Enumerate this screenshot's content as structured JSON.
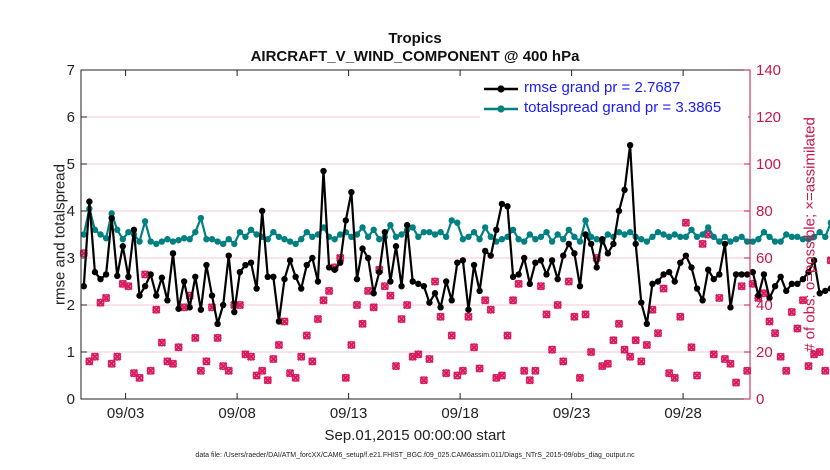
{
  "chart_data": {
    "type": "line",
    "title": "Tropics",
    "subtitle": "AIRCRAFT_V_WIND_COMPONENT @ 400 hPa",
    "xlabel": "Sep.01,2015 00:00:00 start",
    "ylabel_left": "rmse and totalspread",
    "ylabel_right": "# of obs: o=possible; ×=assimilated",
    "footnote": "data file: /Users/raeder/DAI/ATM_forcXX/CAM6_setup/f.e21.FHIST_BGC.f09_025.CAM6assim.011/Diags_NTrS_2015-09/obs_diag_output.nc",
    "x_ticks": [
      "09/03",
      "09/08",
      "09/13",
      "09/18",
      "09/23",
      "09/28"
    ],
    "x_tick_days": [
      3,
      8,
      13,
      18,
      23,
      28
    ],
    "xlim": [
      1,
      31
    ],
    "ylim_left": [
      0,
      7
    ],
    "yticks_left": [
      "0",
      "1",
      "2",
      "3",
      "4",
      "5",
      "6",
      "7"
    ],
    "ylim_right": [
      0,
      140
    ],
    "yticks_right": [
      "0",
      "20",
      "40",
      "60",
      "80",
      "100",
      "120",
      "140"
    ],
    "x_step_days": 0.25,
    "x_start_day": 1.125,
    "colors": {
      "rmse": "#000000",
      "totalspread": "#008080",
      "obs": "#d81b60",
      "right_axis": "#c8174a",
      "legend_text": "#1a1aff"
    },
    "series": [
      {
        "name": "rmse grand pr = 2.7687",
        "axis": "left",
        "values": [
          2.4,
          4.2,
          2.7,
          2.55,
          2.65,
          3.85,
          2.62,
          3.25,
          2.6,
          3.6,
          2.2,
          2.4,
          2.65,
          2.2,
          2.58,
          2.1,
          3.1,
          1.92,
          2.5,
          1.95,
          2.6,
          1.9,
          2.85,
          2.2,
          1.6,
          2.0,
          3.05,
          1.85,
          2.7,
          2.85,
          2.9,
          2.35,
          4.0,
          2.6,
          2.6,
          1.65,
          2.55,
          2.95,
          2.6,
          2.35,
          2.85,
          3.0,
          2.5,
          4.85,
          2.8,
          2.75,
          2.9,
          3.8,
          4.4,
          2.55,
          3.2,
          3.0,
          2.25,
          2.7,
          3.55,
          2.5,
          3.25,
          2.4,
          3.7,
          2.5,
          2.45,
          2.4,
          2.05,
          2.25,
          1.95,
          2.5,
          2.1,
          2.9,
          2.95,
          1.9,
          2.85,
          2.3,
          3.15,
          3.05,
          3.6,
          4.15,
          4.1,
          2.6,
          2.65,
          3.0,
          2.45,
          2.9,
          2.95,
          2.65,
          2.95,
          2.55,
          3.05,
          3.3,
          3.1,
          2.4,
          3.5,
          3.3,
          2.8,
          3.4,
          3.1,
          3.3,
          4.0,
          4.45,
          5.4,
          3.3,
          2.05,
          1.6,
          2.45,
          2.5,
          2.65,
          2.7,
          2.5,
          2.9,
          3.05,
          2.8,
          2.35,
          2.1,
          2.75,
          2.55,
          2.65,
          3.3,
          1.95,
          2.65,
          2.65,
          2.65,
          2.7,
          2.2,
          2.65,
          2.15,
          2.4,
          2.6,
          2.3,
          2.45,
          2.45,
          2.55,
          2.7,
          2.95,
          2.25,
          2.3,
          2.35,
          2.25,
          2.45,
          4.1,
          1.65,
          2.35
        ]
      },
      {
        "name": "totalspread grand pr = 3.3865",
        "axis": "left",
        "values": [
          3.5,
          4.05,
          3.6,
          3.5,
          3.42,
          3.95,
          3.6,
          3.4,
          3.55,
          3.5,
          3.35,
          3.78,
          3.35,
          3.3,
          3.35,
          3.4,
          3.35,
          3.38,
          3.42,
          3.4,
          3.55,
          3.85,
          3.4,
          3.4,
          3.35,
          3.3,
          3.4,
          3.3,
          3.55,
          3.45,
          3.6,
          3.5,
          3.45,
          3.4,
          3.55,
          3.45,
          3.4,
          3.35,
          3.3,
          3.4,
          3.55,
          3.45,
          3.5,
          3.65,
          3.45,
          3.4,
          3.5,
          3.55,
          3.45,
          3.5,
          3.65,
          3.45,
          3.6,
          3.4,
          3.45,
          3.7,
          3.45,
          3.5,
          3.6,
          3.65,
          3.45,
          3.55,
          3.55,
          3.5,
          3.55,
          3.45,
          3.8,
          3.75,
          3.4,
          3.45,
          3.55,
          3.4,
          3.65,
          3.45,
          3.35,
          3.4,
          3.45,
          3.6,
          3.4,
          3.35,
          3.5,
          3.4,
          3.45,
          3.55,
          3.35,
          3.5,
          3.4,
          3.6,
          3.45,
          3.35,
          3.8,
          3.45,
          3.4,
          3.35,
          3.5,
          3.45,
          3.55,
          3.5,
          3.55,
          3.45,
          3.4,
          3.35,
          3.45,
          3.55,
          3.5,
          3.45,
          3.5,
          3.45,
          3.45,
          3.6,
          3.45,
          3.5,
          3.65,
          3.45,
          3.35,
          3.45,
          3.35,
          3.4,
          3.45,
          3.35,
          3.35,
          3.4,
          3.55,
          3.45,
          3.35,
          3.35,
          3.5,
          3.45,
          3.45,
          3.4,
          3.4,
          3.45,
          3.55,
          3.45,
          3.75,
          3.4,
          3.55,
          3.3
        ]
      },
      {
        "name": "possible",
        "axis": "right",
        "marker": "o",
        "values": [
          62,
          16,
          18,
          41,
          43,
          15,
          18,
          49,
          48,
          11,
          9,
          53,
          12,
          38,
          24,
          16,
          15,
          22,
          39,
          44,
          26,
          12,
          16,
          39,
          26,
          14,
          12,
          40,
          40,
          19,
          18,
          10,
          12,
          8,
          17,
          23,
          33,
          11,
          9,
          18,
          27,
          16,
          34,
          42,
          46,
          56,
          60,
          9,
          23,
          40,
          32,
          46,
          39,
          55,
          48,
          44,
          14,
          34,
          40,
          18,
          19,
          8,
          17,
          50,
          35,
          11,
          27,
          10,
          12,
          35,
          22,
          13,
          42,
          38,
          9,
          10,
          27,
          42,
          49,
          12,
          8,
          12,
          48,
          36,
          21,
          40,
          16,
          50,
          35,
          9,
          36,
          20,
          60,
          14,
          15,
          25,
          32,
          21,
          18,
          25,
          16,
          23,
          38,
          28,
          47,
          11,
          9,
          35,
          75,
          22,
          10,
          66,
          70,
          19,
          43,
          17,
          15,
          7,
          48,
          12,
          49,
          43,
          45,
          33,
          28,
          18,
          12,
          37,
          30,
          42,
          14,
          19,
          20,
          12,
          59,
          13,
          63,
          42,
          27,
          61
        ]
      },
      {
        "name": "assimilated",
        "axis": "right",
        "marker": "x",
        "values": [
          62,
          16,
          18,
          41,
          43,
          15,
          18,
          49,
          48,
          11,
          9,
          53,
          12,
          38,
          24,
          16,
          15,
          22,
          39,
          44,
          26,
          12,
          16,
          39,
          26,
          14,
          12,
          40,
          40,
          19,
          18,
          10,
          12,
          8,
          17,
          23,
          33,
          11,
          9,
          18,
          27,
          16,
          34,
          42,
          46,
          56,
          60,
          9,
          23,
          40,
          32,
          46,
          39,
          55,
          48,
          44,
          14,
          34,
          40,
          18,
          19,
          8,
          17,
          50,
          35,
          11,
          27,
          10,
          12,
          35,
          22,
          13,
          42,
          38,
          9,
          10,
          27,
          42,
          49,
          12,
          8,
          12,
          48,
          36,
          21,
          40,
          16,
          50,
          35,
          9,
          36,
          20,
          60,
          14,
          15,
          25,
          32,
          21,
          18,
          25,
          16,
          23,
          38,
          28,
          47,
          11,
          9,
          35,
          75,
          22,
          10,
          66,
          70,
          19,
          43,
          17,
          15,
          7,
          48,
          12,
          49,
          43,
          45,
          33,
          28,
          18,
          12,
          37,
          30,
          42,
          14,
          19,
          20,
          12,
          59,
          13,
          63,
          42,
          27,
          61
        ]
      }
    ],
    "legend_position": "top-right"
  }
}
